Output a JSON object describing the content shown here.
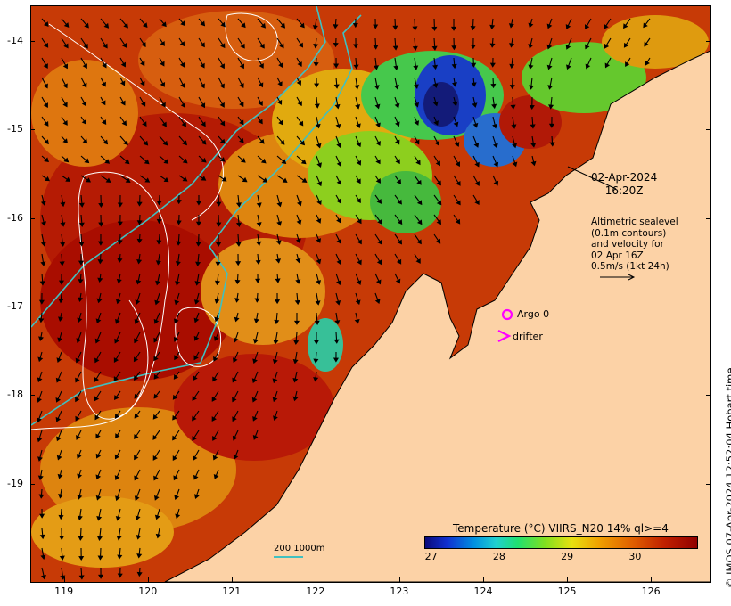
{
  "map": {
    "lat_labels": [
      "-14",
      "-15",
      "-16",
      "-17",
      "-18",
      "-19"
    ],
    "lon_labels": [
      "119",
      "120",
      "121",
      "122",
      "123",
      "124",
      "125",
      "126"
    ],
    "lat_range": [
      -20.1,
      -13.6
    ],
    "lon_range": [
      118.6,
      126.7
    ]
  },
  "overlay": {
    "date": "02-Apr-2024",
    "time": "16:20Z",
    "legend_lines": [
      "Altimetric sealevel",
      "(0.1m contours)",
      "and velocity for",
      "02 Apr 16Z",
      "0.5m/s (1kt 24h)"
    ],
    "argo_label": "Argo 0",
    "drifter_label": "drifter",
    "scale_label": "200  1000m"
  },
  "colorbar": {
    "title": "Temperature (°C) VIIRS_N20 14% ql>=4",
    "ticks": [
      "27",
      "28",
      "29",
      "30"
    ],
    "range": [
      26.9,
      30.9
    ]
  },
  "credit": "© IMOS 07-Apr-2024 12:52:04 Hobart time",
  "colors": {
    "land": "#fcd2a6",
    "isobath": "#40c0c0",
    "contour": "#ffffff",
    "marker": "#ff00ff"
  }
}
